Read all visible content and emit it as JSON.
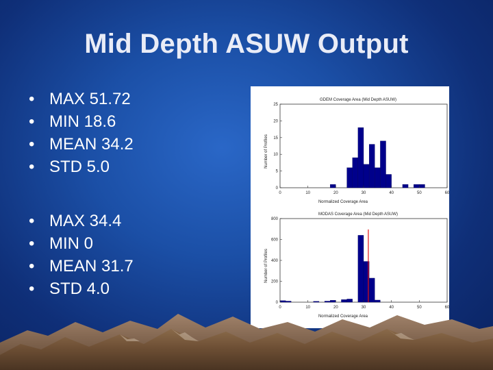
{
  "title": "Mid Depth ASUW Output",
  "stats_groups": [
    {
      "items": [
        "MAX 51.72",
        "MIN 18.6",
        "MEAN 34.2",
        "STD 5.0"
      ]
    },
    {
      "items": [
        "MAX 34.4",
        "MIN 0",
        "MEAN 31.7",
        "STD 4.0"
      ]
    }
  ],
  "bullet_glyph": "•",
  "chart_data": [
    {
      "type": "bar",
      "title": "GDEM Coverage Area (Mid Depth ASUW)",
      "xlabel": "Normalized Coverage Area",
      "ylabel": "Number of Profiles",
      "xlim": [
        0,
        60
      ],
      "ylim": [
        0,
        25
      ],
      "xticks": [
        "0",
        "10",
        "20",
        "30",
        "40",
        "50",
        "60"
      ],
      "yticks": [
        "0",
        "5",
        "10",
        "15",
        "20",
        "25"
      ],
      "bin_width": 2,
      "bins": [
        {
          "x": 19,
          "value": 1
        },
        {
          "x": 25,
          "value": 6
        },
        {
          "x": 27,
          "value": 9
        },
        {
          "x": 29,
          "value": 18
        },
        {
          "x": 31,
          "value": 7
        },
        {
          "x": 33,
          "value": 13
        },
        {
          "x": 35,
          "value": 6
        },
        {
          "x": 37,
          "value": 14
        },
        {
          "x": 39,
          "value": 4
        },
        {
          "x": 45,
          "value": 1
        },
        {
          "x": 49,
          "value": 1
        },
        {
          "x": 51,
          "value": 1
        }
      ],
      "bar_color": "#00008b"
    },
    {
      "type": "bar",
      "title": "MODAS Coverage Area (Mid Depth ASUW)",
      "xlabel": "Normalized Coverage Area",
      "ylabel": "Number of Profiles",
      "xlim": [
        0,
        60
      ],
      "ylim": [
        0,
        800
      ],
      "xticks": [
        "0",
        "10",
        "20",
        "30",
        "40",
        "50",
        "60"
      ],
      "yticks": [
        "0",
        "200",
        "400",
        "600",
        "800"
      ],
      "bin_width": 2,
      "bins": [
        {
          "x": 1,
          "value": 15
        },
        {
          "x": 3,
          "value": 10
        },
        {
          "x": 13,
          "value": 8
        },
        {
          "x": 17,
          "value": 10
        },
        {
          "x": 19,
          "value": 18
        },
        {
          "x": 23,
          "value": 25
        },
        {
          "x": 25,
          "value": 30
        },
        {
          "x": 29,
          "value": 640
        },
        {
          "x": 31,
          "value": 390
        },
        {
          "x": 33,
          "value": 230
        },
        {
          "x": 35,
          "value": 20
        }
      ],
      "reference_line_x": 31.7,
      "bar_color": "#00008b",
      "reference_line_color": "#e01010"
    }
  ]
}
